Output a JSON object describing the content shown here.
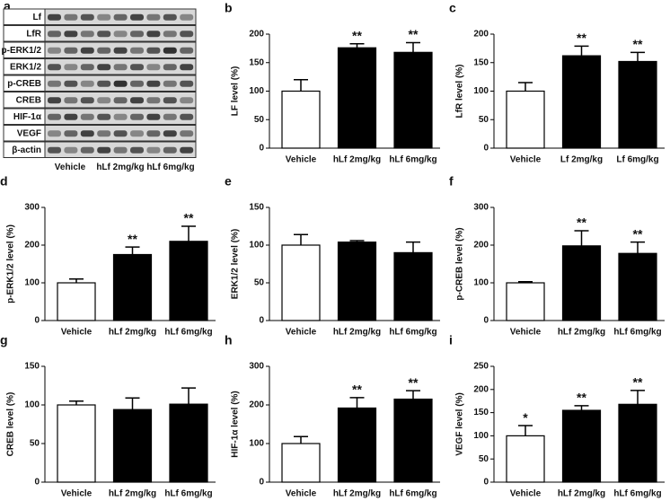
{
  "blot": {
    "panel": "a",
    "rows": [
      "Lf",
      "LfR",
      "p-ERK1/2",
      "ERK1/2",
      "p-CREB",
      "CREB",
      "HIF-1α",
      "VEGF",
      "β-actin"
    ],
    "groups": [
      "Vehicle",
      "hLf 2mg/kg",
      "hLf 6mg/kg"
    ]
  },
  "chart_data": [
    {
      "type": "bar",
      "panel": "b",
      "y_label": "LF level (%)",
      "categories": [
        "Vehicle",
        "hLf 2mg/kg",
        "hLf 6mg/kg"
      ],
      "values": [
        100,
        176,
        168
      ],
      "errors": [
        20,
        7,
        17
      ],
      "annotations": [
        null,
        "**",
        "**"
      ],
      "colors": [
        "#ffffff",
        "#000000",
        "#000000"
      ],
      "ylim": [
        0,
        200
      ],
      "yticks": [
        0,
        50,
        100,
        150,
        200
      ]
    },
    {
      "type": "bar",
      "panel": "c",
      "y_label": "LfR level (%)",
      "categories": [
        "Vehicle",
        "Lf 2mg/kg",
        "Lf 6mg/kg"
      ],
      "values": [
        100,
        162,
        152
      ],
      "errors": [
        15,
        17,
        16
      ],
      "annotations": [
        null,
        "**",
        "**"
      ],
      "colors": [
        "#ffffff",
        "#000000",
        "#000000"
      ],
      "ylim": [
        0,
        200
      ],
      "yticks": [
        0,
        50,
        100,
        150,
        200
      ]
    },
    {
      "type": "bar",
      "panel": "d",
      "y_label": "p-ERK1/2 level (%)",
      "categories": [
        "Vehicle",
        "hLf 2mg/kg",
        "hLf 6mg/kg"
      ],
      "values": [
        100,
        175,
        210
      ],
      "errors": [
        10,
        20,
        40
      ],
      "annotations": [
        null,
        "**",
        "**"
      ],
      "colors": [
        "#ffffff",
        "#000000",
        "#000000"
      ],
      "ylim": [
        0,
        300
      ],
      "yticks": [
        0,
        100,
        200,
        300
      ]
    },
    {
      "type": "bar",
      "panel": "e",
      "y_label": "ERK1/2 level (%)",
      "categories": [
        "Vehicle",
        "hLf 2mg/kg",
        "hLf 6mg/kg"
      ],
      "values": [
        100,
        104,
        90
      ],
      "errors": [
        14,
        2,
        14
      ],
      "annotations": [
        null,
        null,
        null
      ],
      "colors": [
        "#ffffff",
        "#000000",
        "#000000"
      ],
      "ylim": [
        0,
        150
      ],
      "yticks": [
        0,
        50,
        100,
        150
      ]
    },
    {
      "type": "bar",
      "panel": "f",
      "y_label": "p-CREB level (%)",
      "categories": [
        "Vehicle",
        "hLf 2mg/kg",
        "hLf 6mg/kg"
      ],
      "values": [
        100,
        198,
        178
      ],
      "errors": [
        3,
        40,
        30
      ],
      "annotations": [
        null,
        "**",
        "**"
      ],
      "colors": [
        "#ffffff",
        "#000000",
        "#000000"
      ],
      "ylim": [
        0,
        300
      ],
      "yticks": [
        0,
        100,
        200,
        300
      ]
    },
    {
      "type": "bar",
      "panel": "g",
      "y_label": "CREB level (%)",
      "categories": [
        "Vehicle",
        "hLf 2mg/kg",
        "hLf 6mg/kg"
      ],
      "values": [
        100,
        94,
        101
      ],
      "errors": [
        5,
        15,
        21
      ],
      "annotations": [
        null,
        null,
        null
      ],
      "colors": [
        "#ffffff",
        "#000000",
        "#000000"
      ],
      "ylim": [
        0,
        150
      ],
      "yticks": [
        0,
        50,
        100,
        150
      ]
    },
    {
      "type": "bar",
      "panel": "h",
      "y_label": "HIF-1α level (%)",
      "categories": [
        "Vehicle",
        "hLf 2mg/kg",
        "hLf 6mg/kg"
      ],
      "values": [
        100,
        192,
        215
      ],
      "errors": [
        18,
        27,
        22
      ],
      "annotations": [
        null,
        "**",
        "**"
      ],
      "colors": [
        "#ffffff",
        "#000000",
        "#000000"
      ],
      "ylim": [
        0,
        300
      ],
      "yticks": [
        0,
        100,
        200,
        300
      ]
    },
    {
      "type": "bar",
      "panel": "i",
      "y_label": "VEGF level (%)",
      "categories": [
        "Vehicle",
        "hLf 2mg/kg",
        "hLf 6mg/kg"
      ],
      "values": [
        100,
        155,
        168
      ],
      "errors": [
        22,
        10,
        30
      ],
      "annotations": [
        "*",
        "**",
        "**"
      ],
      "colors": [
        "#ffffff",
        "#000000",
        "#000000"
      ],
      "ylim": [
        0,
        250
      ],
      "yticks": [
        0,
        50,
        100,
        150,
        200,
        250
      ]
    }
  ]
}
